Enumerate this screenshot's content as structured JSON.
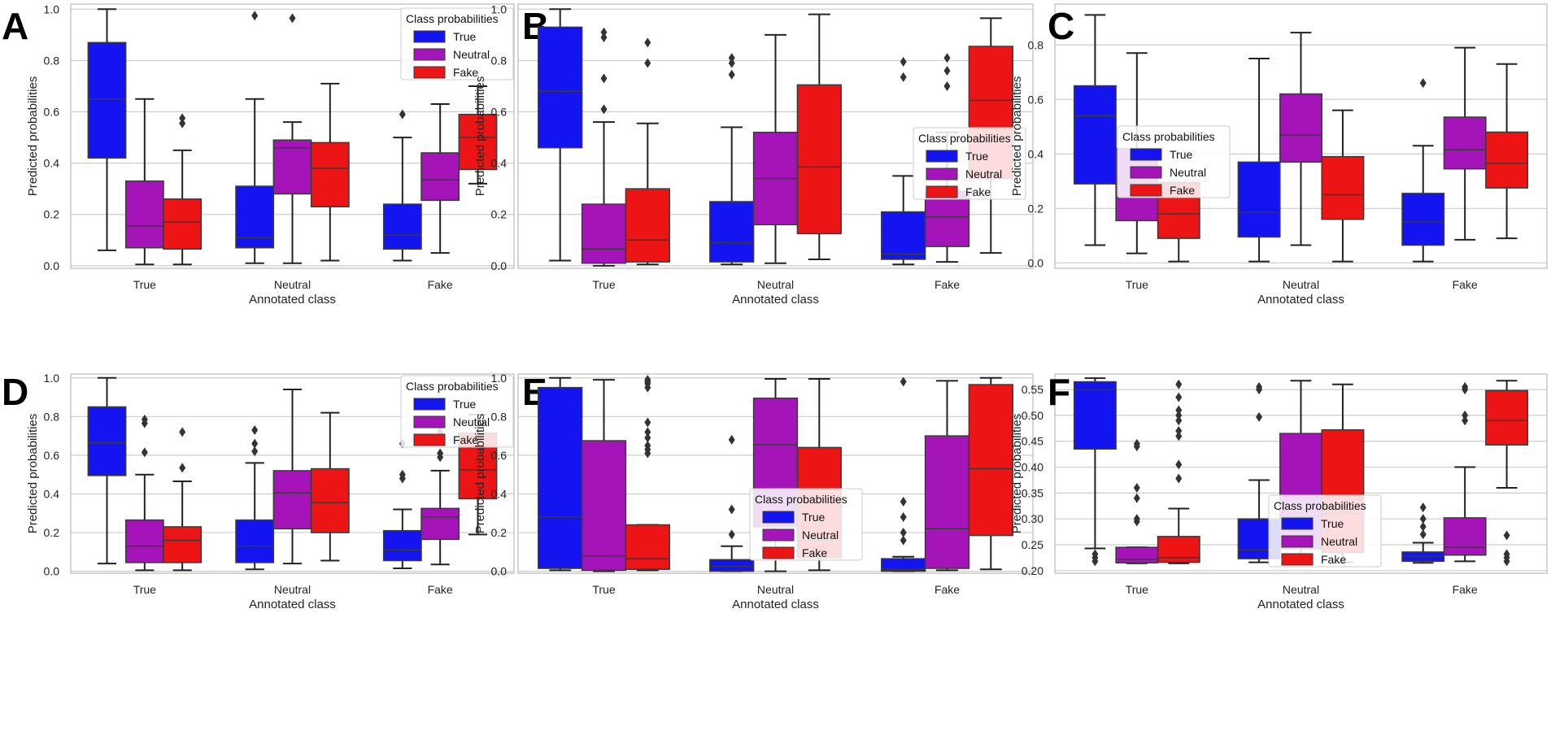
{
  "figure": {
    "background": "#ffffff"
  },
  "colors": {
    "True": "#1414f0",
    "Neutral": "#a414b8",
    "Fake": "#ec1414"
  },
  "chart_data": [
    {
      "type": "box",
      "panel": "A",
      "xlabel": "Annotated class",
      "ylabel": "Predicted probabilities",
      "ylim": [
        -0.01,
        1.02
      ],
      "yticks": [
        0.0,
        0.2,
        0.4,
        0.6,
        0.8,
        1.0
      ],
      "ytick_labels": [
        "0.0",
        "0.2",
        "0.4",
        "0.6",
        "0.8",
        "1.0"
      ],
      "categories": [
        "True",
        "Neutral",
        "Fake"
      ],
      "legend": {
        "title": "Class probabilities",
        "position": "top-right",
        "entries": [
          "True",
          "Neutral",
          "Fake"
        ]
      },
      "series": [
        {
          "name": "True",
          "boxes": [
            {
              "q1": 0.42,
              "med": 0.65,
              "q3": 0.87,
              "lo": 0.06,
              "hi": 1.0,
              "fliers": []
            },
            {
              "q1": 0.07,
              "med": 0.11,
              "q3": 0.31,
              "lo": 0.01,
              "hi": 0.65,
              "fliers": [
                0.975
              ]
            },
            {
              "q1": 0.065,
              "med": 0.12,
              "q3": 0.24,
              "lo": 0.02,
              "hi": 0.5,
              "fliers": [
                0.59
              ]
            }
          ]
        },
        {
          "name": "Neutral",
          "boxes": [
            {
              "q1": 0.07,
              "med": 0.155,
              "q3": 0.33,
              "lo": 0.005,
              "hi": 0.65,
              "fliers": []
            },
            {
              "q1": 0.28,
              "med": 0.46,
              "q3": 0.49,
              "lo": 0.01,
              "hi": 0.56,
              "fliers": [
                0.965
              ]
            },
            {
              "q1": 0.255,
              "med": 0.335,
              "q3": 0.44,
              "lo": 0.05,
              "hi": 0.63,
              "fliers": []
            }
          ]
        },
        {
          "name": "Fake",
          "boxes": [
            {
              "q1": 0.065,
              "med": 0.17,
              "q3": 0.26,
              "lo": 0.005,
              "hi": 0.45,
              "fliers": [
                0.555,
                0.575
              ]
            },
            {
              "q1": 0.23,
              "med": 0.38,
              "q3": 0.48,
              "lo": 0.02,
              "hi": 0.71,
              "fliers": []
            },
            {
              "q1": 0.375,
              "med": 0.5,
              "q3": 0.59,
              "lo": 0.32,
              "hi": 0.7,
              "fliers": []
            }
          ]
        }
      ]
    },
    {
      "type": "box",
      "panel": "B",
      "xlabel": "Annotated class",
      "ylabel": "Predicted probabilities",
      "ylim": [
        -0.01,
        1.02
      ],
      "yticks": [
        0.0,
        0.2,
        0.4,
        0.6,
        0.8,
        1.0
      ],
      "ytick_labels": [
        "0.0",
        "0.2",
        "0.4",
        "0.6",
        "0.8",
        "1.0"
      ],
      "categories": [
        "True",
        "Neutral",
        "Fake"
      ],
      "legend": {
        "title": "Class probabilities",
        "position": "center-right",
        "entries": [
          "True",
          "Neutral",
          "Fake"
        ]
      },
      "series": [
        {
          "name": "True",
          "boxes": [
            {
              "q1": 0.46,
              "med": 0.68,
              "q3": 0.93,
              "lo": 0.02,
              "hi": 1.0,
              "fliers": []
            },
            {
              "q1": 0.015,
              "med": 0.09,
              "q3": 0.25,
              "lo": 0.005,
              "hi": 0.54,
              "fliers": [
                0.745,
                0.79,
                0.81
              ]
            },
            {
              "q1": 0.025,
              "med": 0.045,
              "q3": 0.21,
              "lo": 0.005,
              "hi": 0.35,
              "fliers": [
                0.735,
                0.795
              ]
            }
          ]
        },
        {
          "name": "Neutral",
          "boxes": [
            {
              "q1": 0.01,
              "med": 0.065,
              "q3": 0.24,
              "lo": 0.0,
              "hi": 0.56,
              "fliers": [
                0.61,
                0.73,
                0.89,
                0.91
              ]
            },
            {
              "q1": 0.16,
              "med": 0.34,
              "q3": 0.52,
              "lo": 0.01,
              "hi": 0.9,
              "fliers": []
            },
            {
              "q1": 0.075,
              "med": 0.19,
              "q3": 0.29,
              "lo": 0.015,
              "hi": 0.52,
              "fliers": [
                0.7,
                0.76,
                0.81
              ]
            }
          ]
        },
        {
          "name": "Fake",
          "boxes": [
            {
              "q1": 0.015,
              "med": 0.1,
              "q3": 0.3,
              "lo": 0.005,
              "hi": 0.555,
              "fliers": [
                0.79,
                0.87
              ]
            },
            {
              "q1": 0.125,
              "med": 0.385,
              "q3": 0.705,
              "lo": 0.025,
              "hi": 0.98,
              "fliers": []
            },
            {
              "q1": 0.34,
              "med": 0.645,
              "q3": 0.855,
              "lo": 0.05,
              "hi": 0.965,
              "fliers": []
            }
          ]
        }
      ]
    },
    {
      "type": "box",
      "panel": "C",
      "xlabel": "Annotated class",
      "ylabel": "Predicted probabilities",
      "ylim": [
        -0.02,
        0.95
      ],
      "yticks": [
        0.0,
        0.2,
        0.4,
        0.6,
        0.8
      ],
      "ytick_labels": [
        "0.0",
        "0.2",
        "0.4",
        "0.6",
        "0.8"
      ],
      "categories": [
        "True",
        "Neutral",
        "Fake"
      ],
      "legend": {
        "title": "Class probabilities",
        "position": "center-left",
        "entries": [
          "True",
          "Neutral",
          "Fake"
        ]
      },
      "series": [
        {
          "name": "True",
          "boxes": [
            {
              "q1": 0.29,
              "med": 0.54,
              "q3": 0.65,
              "lo": 0.065,
              "hi": 0.91,
              "fliers": []
            },
            {
              "q1": 0.095,
              "med": 0.185,
              "q3": 0.37,
              "lo": 0.005,
              "hi": 0.75,
              "fliers": []
            },
            {
              "q1": 0.065,
              "med": 0.15,
              "q3": 0.255,
              "lo": 0.005,
              "hi": 0.43,
              "fliers": [
                0.66
              ]
            }
          ]
        },
        {
          "name": "Neutral",
          "boxes": [
            {
              "q1": 0.155,
              "med": 0.295,
              "q3": 0.42,
              "lo": 0.035,
              "hi": 0.77,
              "fliers": []
            },
            {
              "q1": 0.37,
              "med": 0.47,
              "q3": 0.62,
              "lo": 0.065,
              "hi": 0.845,
              "fliers": []
            },
            {
              "q1": 0.345,
              "med": 0.415,
              "q3": 0.535,
              "lo": 0.085,
              "hi": 0.79,
              "fliers": []
            }
          ]
        },
        {
          "name": "Fake",
          "boxes": [
            {
              "q1": 0.09,
              "med": 0.18,
              "q3": 0.295,
              "lo": 0.005,
              "hi": 0.295,
              "fliers": []
            },
            {
              "q1": 0.16,
              "med": 0.25,
              "q3": 0.39,
              "lo": 0.005,
              "hi": 0.56,
              "fliers": []
            },
            {
              "q1": 0.275,
              "med": 0.365,
              "q3": 0.48,
              "lo": 0.09,
              "hi": 0.73,
              "fliers": []
            }
          ]
        }
      ]
    },
    {
      "type": "box",
      "panel": "D",
      "xlabel": "Annotated class",
      "ylabel": "Predicted probabilities",
      "ylim": [
        -0.01,
        1.02
      ],
      "yticks": [
        0.0,
        0.2,
        0.4,
        0.6,
        0.8,
        1.0
      ],
      "ytick_labels": [
        "0.0",
        "0.2",
        "0.4",
        "0.6",
        "0.8",
        "1.0"
      ],
      "categories": [
        "True",
        "Neutral",
        "Fake"
      ],
      "legend": {
        "title": "Class probabilities",
        "position": "top-right",
        "entries": [
          "True",
          "Neutral",
          "Fake"
        ]
      },
      "series": [
        {
          "name": "True",
          "boxes": [
            {
              "q1": 0.495,
              "med": 0.665,
              "q3": 0.85,
              "lo": 0.04,
              "hi": 1.0,
              "fliers": []
            },
            {
              "q1": 0.045,
              "med": 0.13,
              "q3": 0.265,
              "lo": 0.01,
              "hi": 0.56,
              "fliers": [
                0.62,
                0.66,
                0.73
              ]
            },
            {
              "q1": 0.055,
              "med": 0.11,
              "q3": 0.21,
              "lo": 0.015,
              "hi": 0.32,
              "fliers": [
                0.48,
                0.5,
                0.66
              ]
            }
          ]
        },
        {
          "name": "Neutral",
          "boxes": [
            {
              "q1": 0.045,
              "med": 0.13,
              "q3": 0.265,
              "lo": 0.005,
              "hi": 0.5,
              "fliers": [
                0.615,
                0.765,
                0.785
              ]
            },
            {
              "q1": 0.22,
              "med": 0.405,
              "q3": 0.52,
              "lo": 0.04,
              "hi": 0.94,
              "fliers": []
            },
            {
              "q1": 0.165,
              "med": 0.28,
              "q3": 0.325,
              "lo": 0.035,
              "hi": 0.52,
              "fliers": [
                0.59,
                0.61,
                0.72
              ]
            }
          ]
        },
        {
          "name": "Fake",
          "boxes": [
            {
              "q1": 0.045,
              "med": 0.16,
              "q3": 0.23,
              "lo": 0.005,
              "hi": 0.465,
              "fliers": [
                0.535,
                0.72
              ]
            },
            {
              "q1": 0.2,
              "med": 0.355,
              "q3": 0.53,
              "lo": 0.055,
              "hi": 0.82,
              "fliers": []
            },
            {
              "q1": 0.375,
              "med": 0.525,
              "q3": 0.715,
              "lo": 0.19,
              "hi": 0.81,
              "fliers": []
            }
          ]
        }
      ]
    },
    {
      "type": "box",
      "panel": "E",
      "xlabel": "Annotated class",
      "ylabel": "Predicted probabilities",
      "ylim": [
        -0.01,
        1.02
      ],
      "yticks": [
        0.0,
        0.2,
        0.4,
        0.6,
        0.8,
        1.0
      ],
      "ytick_labels": [
        "0.0",
        "0.2",
        "0.4",
        "0.6",
        "0.8",
        "1.0"
      ],
      "categories": [
        "True",
        "Neutral",
        "Fake"
      ],
      "legend": {
        "title": "Class probabilities",
        "position": "center",
        "entries": [
          "True",
          "Neutral",
          "Fake"
        ]
      },
      "series": [
        {
          "name": "True",
          "boxes": [
            {
              "q1": 0.015,
              "med": 0.28,
              "q3": 0.95,
              "lo": 0.005,
              "hi": 1.0,
              "fliers": []
            },
            {
              "q1": 0.0,
              "med": 0.025,
              "q3": 0.06,
              "lo": 0.0,
              "hi": 0.13,
              "fliers": [
                0.19,
                0.32,
                0.68
              ]
            },
            {
              "q1": 0.0,
              "med": 0.01,
              "q3": 0.065,
              "lo": 0.0,
              "hi": 0.075,
              "fliers": [
                0.16,
                0.2,
                0.28,
                0.36,
                0.98
              ]
            }
          ]
        },
        {
          "name": "Neutral",
          "boxes": [
            {
              "q1": 0.005,
              "med": 0.08,
              "q3": 0.675,
              "lo": 0.0,
              "hi": 0.99,
              "fliers": []
            },
            {
              "q1": 0.23,
              "med": 0.655,
              "q3": 0.895,
              "lo": 0.0,
              "hi": 0.995,
              "fliers": []
            },
            {
              "q1": 0.015,
              "med": 0.22,
              "q3": 0.7,
              "lo": 0.005,
              "hi": 0.985,
              "fliers": []
            }
          ]
        },
        {
          "name": "Fake",
          "boxes": [
            {
              "q1": 0.01,
              "med": 0.065,
              "q3": 0.24,
              "lo": 0.005,
              "hi": 0.24,
              "fliers": [
                0.61,
                0.63,
                0.65,
                0.69,
                0.72,
                0.77,
                0.95,
                0.97,
                0.98,
                0.99
              ]
            },
            {
              "q1": 0.07,
              "med": 0.16,
              "q3": 0.64,
              "lo": 0.005,
              "hi": 0.995,
              "fliers": []
            },
            {
              "q1": 0.185,
              "med": 0.53,
              "q3": 0.965,
              "lo": 0.01,
              "hi": 1.0,
              "fliers": []
            }
          ]
        }
      ]
    },
    {
      "type": "box",
      "panel": "F",
      "xlabel": "Annotated class",
      "ylabel": "Predicted probabilities",
      "ylim": [
        0.195,
        0.58
      ],
      "yticks": [
        0.2,
        0.25,
        0.3,
        0.35,
        0.4,
        0.45,
        0.5,
        0.55
      ],
      "ytick_labels": [
        "0.20",
        "0.25",
        "0.30",
        "0.35",
        "0.40",
        "0.45",
        "0.50",
        "0.55"
      ],
      "categories": [
        "True",
        "Neutral",
        "Fake"
      ],
      "legend": {
        "title": "Class probabilities",
        "position": "center",
        "entries": [
          "True",
          "Neutral",
          "Fake"
        ]
      },
      "series": [
        {
          "name": "True",
          "boxes": [
            {
              "q1": 0.435,
              "med": 0.55,
              "q3": 0.565,
              "lo": 0.243,
              "hi": 0.572,
              "fliers": [
                0.218,
                0.225,
                0.232
              ]
            },
            {
              "q1": 0.223,
              "med": 0.24,
              "q3": 0.3,
              "lo": 0.216,
              "hi": 0.375,
              "fliers": [
                0.497,
                0.55,
                0.555
              ]
            },
            {
              "q1": 0.218,
              "med": 0.228,
              "q3": 0.236,
              "lo": 0.215,
              "hi": 0.254,
              "fliers": [
                0.27,
                0.285,
                0.3,
                0.322
              ]
            }
          ]
        },
        {
          "name": "Neutral",
          "boxes": [
            {
              "q1": 0.215,
              "med": 0.222,
              "q3": 0.245,
              "lo": 0.214,
              "hi": 0.245,
              "fliers": [
                0.295,
                0.3,
                0.34,
                0.36,
                0.44,
                0.445
              ]
            },
            {
              "q1": 0.242,
              "med": 0.305,
              "q3": 0.465,
              "lo": 0.218,
              "hi": 0.567,
              "fliers": []
            },
            {
              "q1": 0.23,
              "med": 0.245,
              "q3": 0.302,
              "lo": 0.218,
              "hi": 0.4,
              "fliers": [
                0.49,
                0.5,
                0.55,
                0.555
              ]
            }
          ]
        },
        {
          "name": "Fake",
          "boxes": [
            {
              "q1": 0.216,
              "med": 0.225,
              "q3": 0.266,
              "lo": 0.214,
              "hi": 0.32,
              "fliers": [
                0.378,
                0.405,
                0.46,
                0.47,
                0.49,
                0.5,
                0.51,
                0.535,
                0.56
              ]
            },
            {
              "q1": 0.235,
              "med": 0.31,
              "q3": 0.472,
              "lo": 0.216,
              "hi": 0.56,
              "fliers": []
            },
            {
              "q1": 0.443,
              "med": 0.49,
              "q3": 0.548,
              "lo": 0.36,
              "hi": 0.567,
              "fliers": [
                0.218,
                0.225,
                0.232,
                0.268
              ]
            }
          ]
        }
      ]
    }
  ]
}
